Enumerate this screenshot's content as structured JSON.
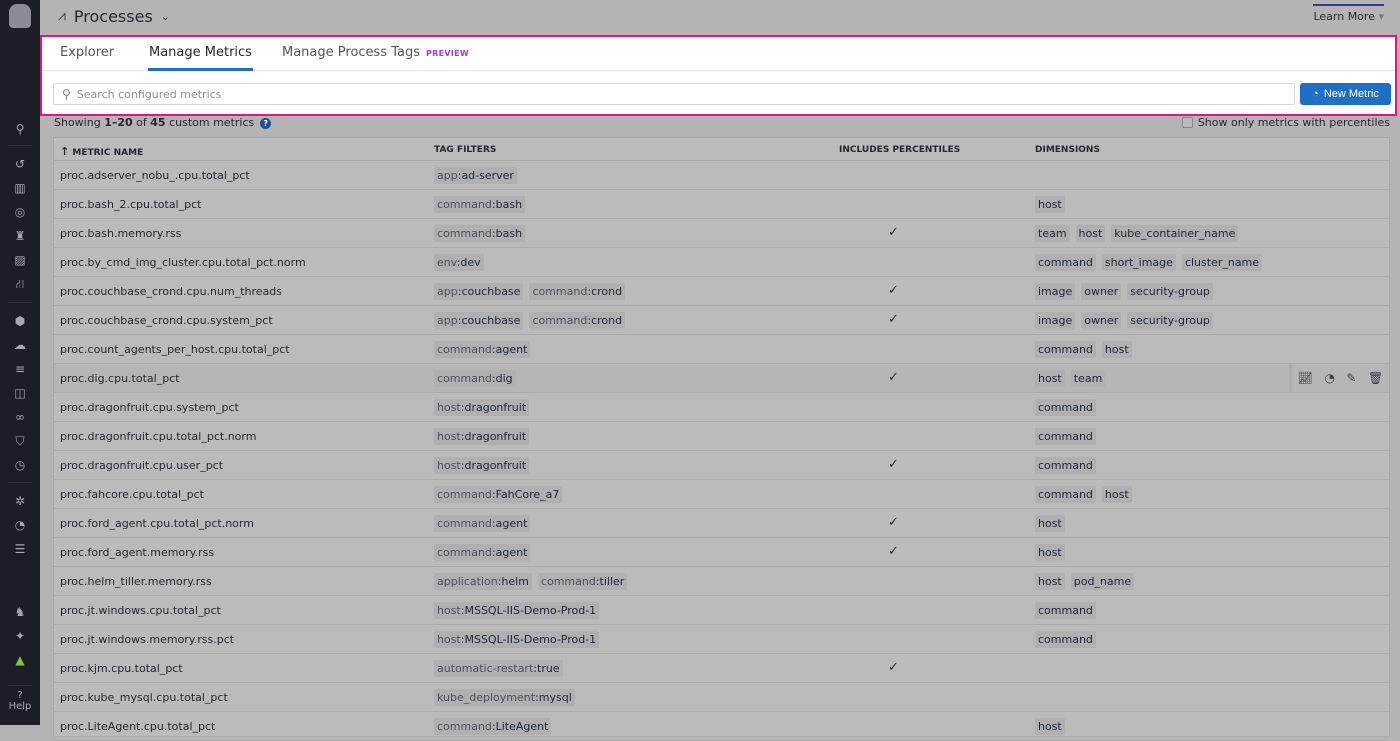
{
  "header": {
    "title": "Processes",
    "learn_more": "Learn More"
  },
  "sidebar": {
    "icons": [
      "search-icon",
      "history-icon",
      "dashboard-icon",
      "monitor-icon",
      "binoculars-icon",
      "infrastructure-icon",
      "integrations-icon",
      "apm-icon",
      "cloud-icon",
      "logs-icon",
      "network-icon",
      "synthetics-icon",
      "security-icon",
      "rum-icon",
      "bug-icon",
      "gauge-icon",
      "ci-icon",
      "puzzle-icon",
      "sparkle-icon",
      "avatar-icon"
    ],
    "help": "Help"
  },
  "tabs": [
    {
      "label": "Explorer"
    },
    {
      "label": "Manage Metrics",
      "active": true
    },
    {
      "label": "Manage Process Tags",
      "badge": "PREVIEW"
    }
  ],
  "search": {
    "placeholder": "Search configured metrics",
    "value": ""
  },
  "new_metric_label": "New Metric",
  "summary": {
    "prefix": "Showing ",
    "range": "1–20",
    "mid": " of ",
    "total": "45",
    "suffix": " custom metrics"
  },
  "percentile_filter_label": "Show only metrics with percentiles",
  "columns": {
    "name": "METRIC NAME",
    "tags": "TAG FILTERS",
    "percentiles": "INCLUDES PERCENTILES",
    "dimensions": "DIMENSIONS"
  },
  "colors": {
    "accent": "#1f6fc5",
    "highlight": "#e4138a",
    "preview": "#9b3ee0"
  },
  "rows": [
    {
      "name": "proc.adserver_nobu_.cpu.total_pct",
      "tags": [
        [
          "app",
          "ad-server"
        ]
      ],
      "pct": false,
      "dims": []
    },
    {
      "name": "proc.bash_2.cpu.total_pct",
      "tags": [
        [
          "command",
          "bash"
        ]
      ],
      "pct": false,
      "dims": [
        "host"
      ]
    },
    {
      "name": "proc.bash.memory.rss",
      "tags": [
        [
          "command",
          "bash"
        ]
      ],
      "pct": true,
      "dims": [
        "team",
        "host",
        "kube_container_name"
      ]
    },
    {
      "name": "proc.by_cmd_img_cluster.cpu.total_pct.norm",
      "tags": [
        [
          "env",
          "dev"
        ]
      ],
      "pct": false,
      "dims": [
        "command",
        "short_image",
        "cluster_name"
      ]
    },
    {
      "name": "proc.couchbase_crond.cpu.num_threads",
      "tags": [
        [
          "app",
          "couchbase"
        ],
        [
          "command",
          "crond"
        ]
      ],
      "pct": true,
      "dims": [
        "image",
        "owner",
        "security-group"
      ]
    },
    {
      "name": "proc.couchbase_crond.cpu.system_pct",
      "tags": [
        [
          "app",
          "couchbase"
        ],
        [
          "command",
          "crond"
        ]
      ],
      "pct": true,
      "dims": [
        "image",
        "owner",
        "security-group"
      ]
    },
    {
      "name": "proc.count_agents_per_host.cpu.total_pct",
      "tags": [
        [
          "command",
          "agent"
        ]
      ],
      "pct": false,
      "dims": [
        "command",
        "host"
      ]
    },
    {
      "name": "proc.dig.cpu.total_pct",
      "tags": [
        [
          "command",
          "dig"
        ]
      ],
      "pct": true,
      "dims": [
        "host",
        "team"
      ],
      "hover": true
    },
    {
      "name": "proc.dragonfruit.cpu.system_pct",
      "tags": [
        [
          "host",
          "dragonfruit"
        ]
      ],
      "pct": false,
      "dims": [
        "command"
      ]
    },
    {
      "name": "proc.dragonfruit.cpu.total_pct.norm",
      "tags": [
        [
          "host",
          "dragonfruit"
        ]
      ],
      "pct": false,
      "dims": [
        "command"
      ]
    },
    {
      "name": "proc.dragonfruit.cpu.user_pct",
      "tags": [
        [
          "host",
          "dragonfruit"
        ]
      ],
      "pct": true,
      "dims": [
        "command"
      ]
    },
    {
      "name": "proc.fahcore.cpu.total_pct",
      "tags": [
        [
          "command",
          "FahCore_a7"
        ]
      ],
      "pct": false,
      "dims": [
        "command",
        "host"
      ]
    },
    {
      "name": "proc.ford_agent.cpu.total_pct.norm",
      "tags": [
        [
          "command",
          "agent"
        ]
      ],
      "pct": true,
      "dims": [
        "host"
      ]
    },
    {
      "name": "proc.ford_agent.memory.rss",
      "tags": [
        [
          "command",
          "agent"
        ]
      ],
      "pct": true,
      "dims": [
        "host"
      ]
    },
    {
      "name": "proc.helm_tiller.memory.rss",
      "tags": [
        [
          "application",
          "helm"
        ],
        [
          "command",
          "tiller"
        ]
      ],
      "pct": false,
      "dims": [
        "host",
        "pod_name"
      ]
    },
    {
      "name": "proc.jt.windows.cpu.total_pct",
      "tags": [
        [
          "host",
          "MSSQL-IIS-Demo-Prod-1"
        ]
      ],
      "pct": false,
      "dims": [
        "command"
      ]
    },
    {
      "name": "proc.jt.windows.memory.rss.pct",
      "tags": [
        [
          "host",
          "MSSQL-IIS-Demo-Prod-1"
        ]
      ],
      "pct": false,
      "dims": [
        "command"
      ]
    },
    {
      "name": "proc.kjm.cpu.total_pct",
      "tags": [
        [
          "automatic-restart",
          "true"
        ]
      ],
      "pct": true,
      "dims": []
    },
    {
      "name": "proc.kube_mysql.cpu.total_pct",
      "tags": [
        [
          "kube_deployment",
          "mysql"
        ]
      ],
      "pct": false,
      "dims": []
    },
    {
      "name": "proc.LiteAgent.cpu.total_pct",
      "tags": [
        [
          "command",
          "LiteAgent"
        ]
      ],
      "pct": false,
      "dims": [
        "host"
      ]
    }
  ],
  "check_glyph": "✓"
}
